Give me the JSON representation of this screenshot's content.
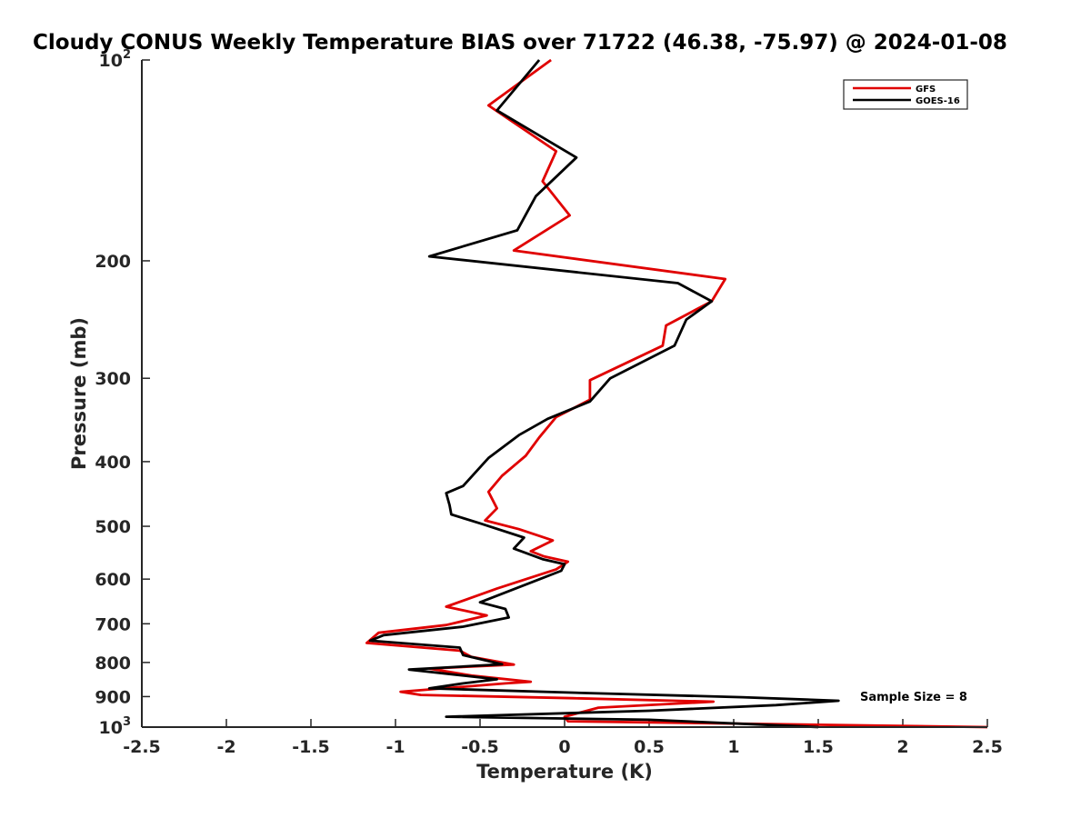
{
  "chart_data": {
    "type": "line",
    "title": "Cloudy CONUS Weekly Temperature BIAS over 71722 (46.38, -75.97) @ 2024-01-08",
    "xlabel": "Temperature (K)",
    "ylabel": "Pressure (mb)",
    "xlim": [
      -2.5,
      2.5
    ],
    "ylim": [
      100,
      1000
    ],
    "yscale": "log",
    "ydirection": "reverse",
    "xticks": [
      "-2.5",
      "-2",
      "-1.5",
      "-1",
      "-0.5",
      "0",
      "0.5",
      "1",
      "1.5",
      "2",
      "2.5"
    ],
    "yticks": [
      {
        "value": 100,
        "base": "10",
        "exp": "2"
      },
      {
        "value": 200,
        "label": "200"
      },
      {
        "value": 300,
        "label": "300"
      },
      {
        "value": 400,
        "label": "400"
      },
      {
        "value": 500,
        "label": "500"
      },
      {
        "value": 600,
        "label": "600"
      },
      {
        "value": 700,
        "label": "700"
      },
      {
        "value": 800,
        "label": "800"
      },
      {
        "value": 900,
        "label": "900"
      },
      {
        "value": 1000,
        "base": "10",
        "exp": "3"
      }
    ],
    "legend": {
      "position": "top-right"
    },
    "annotation": "Sample Size = 8",
    "series": [
      {
        "name": "GFS",
        "color": "#e00000",
        "points": [
          [
            -0.08,
            100
          ],
          [
            -0.45,
            117
          ],
          [
            -0.05,
            137
          ],
          [
            -0.13,
            152
          ],
          [
            0.03,
            171
          ],
          [
            -0.3,
            193
          ],
          [
            0.95,
            213
          ],
          [
            0.87,
            230
          ],
          [
            0.6,
            250
          ],
          [
            0.58,
            268
          ],
          [
            0.15,
            302
          ],
          [
            0.15,
            323
          ],
          [
            -0.05,
            343
          ],
          [
            -0.15,
            368
          ],
          [
            -0.23,
            392
          ],
          [
            -0.37,
            420
          ],
          [
            -0.45,
            444
          ],
          [
            -0.4,
            470
          ],
          [
            -0.47,
            490
          ],
          [
            -0.27,
            505
          ],
          [
            -0.07,
            525
          ],
          [
            -0.2,
            545
          ],
          [
            -0.12,
            555
          ],
          [
            0.02,
            565
          ],
          [
            -0.05,
            580
          ],
          [
            -0.4,
            620
          ],
          [
            -0.7,
            660
          ],
          [
            -0.46,
            680
          ],
          [
            -0.7,
            703
          ],
          [
            -1.1,
            722
          ],
          [
            -1.17,
            748
          ],
          [
            -0.62,
            768
          ],
          [
            -0.55,
            785
          ],
          [
            -0.3,
            806
          ],
          [
            -0.8,
            817
          ],
          [
            -0.55,
            837
          ],
          [
            -0.2,
            855
          ],
          [
            -0.35,
            860
          ],
          [
            -0.97,
            885
          ],
          [
            -0.85,
            895
          ],
          [
            0.05,
            905
          ],
          [
            0.88,
            916
          ],
          [
            0.2,
            935
          ],
          [
            0.0,
            965
          ],
          [
            0.02,
            980
          ],
          [
            2.5,
            1000
          ]
        ]
      },
      {
        "name": "GOES-16",
        "color": "#000000",
        "points": [
          [
            -0.15,
            100
          ],
          [
            -0.4,
            119
          ],
          [
            0.07,
            140
          ],
          [
            -0.17,
            160
          ],
          [
            -0.28,
            180
          ],
          [
            -0.8,
            197
          ],
          [
            0.67,
            216
          ],
          [
            0.87,
            230
          ],
          [
            0.72,
            245
          ],
          [
            0.65,
            268
          ],
          [
            0.27,
            300
          ],
          [
            0.15,
            325
          ],
          [
            -0.1,
            345
          ],
          [
            -0.27,
            365
          ],
          [
            -0.45,
            395
          ],
          [
            -0.6,
            435
          ],
          [
            -0.7,
            446
          ],
          [
            -0.68,
            465
          ],
          [
            -0.67,
            480
          ],
          [
            -0.5,
            495
          ],
          [
            -0.24,
            520
          ],
          [
            -0.3,
            540
          ],
          [
            -0.13,
            560
          ],
          [
            0.0,
            570
          ],
          [
            -0.02,
            583
          ],
          [
            -0.5,
            650
          ],
          [
            -0.35,
            665
          ],
          [
            -0.33,
            685
          ],
          [
            -0.6,
            707
          ],
          [
            -1.07,
            728
          ],
          [
            -1.15,
            742
          ],
          [
            -0.62,
            760
          ],
          [
            -0.6,
            780
          ],
          [
            -0.37,
            805
          ],
          [
            -0.92,
            820
          ],
          [
            -0.4,
            848
          ],
          [
            -0.6,
            860
          ],
          [
            -0.8,
            875
          ],
          [
            0.2,
            890
          ],
          [
            1.05,
            902
          ],
          [
            1.62,
            913
          ],
          [
            1.25,
            927
          ],
          [
            0.5,
            945
          ],
          [
            -0.7,
            965
          ],
          [
            0.5,
            975
          ],
          [
            1.5,
            1000
          ]
        ]
      }
    ]
  }
}
